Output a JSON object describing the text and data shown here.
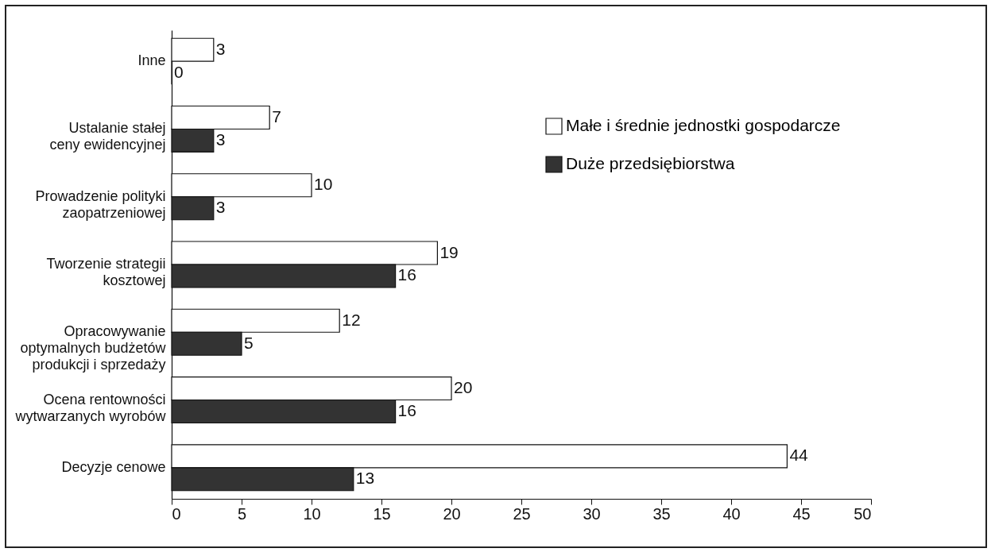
{
  "chart_data": {
    "type": "bar",
    "orientation": "horizontal",
    "categories": [
      "Inne",
      "Ustalanie stałej\nceny ewidencyjnej",
      "Prowadzenie polityki\nzaopatrzeniowej",
      "Tworzenie strategii\nkosztowej",
      "Opracowywanie\noptymalnych budżetów\nprodukcji i sprzedaży",
      "Ocena rentowności\nwytwarzanych wyrobów",
      "Decyzje cenowe"
    ],
    "series": [
      {
        "name": "Małe i średnie jednostki gospodarcze",
        "color": "#ffffff",
        "values": [
          3,
          7,
          10,
          19,
          12,
          20,
          44
        ]
      },
      {
        "name": "Duże przedsiębiorstwa",
        "color": "#333333",
        "values": [
          0,
          3,
          3,
          16,
          5,
          16,
          13
        ]
      }
    ],
    "xlim": [
      0,
      50
    ],
    "xticks": [
      0,
      5,
      10,
      15,
      20,
      25,
      30,
      35,
      40,
      45,
      50
    ],
    "data_labels": true,
    "legend": "top right",
    "grid": false
  }
}
